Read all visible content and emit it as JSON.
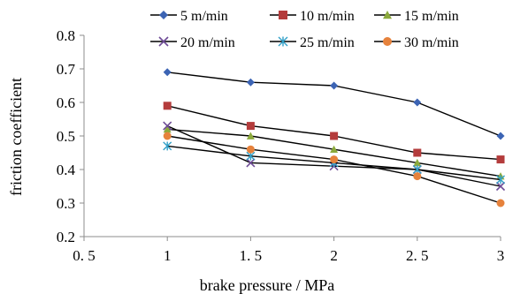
{
  "chart_data": {
    "type": "line",
    "title": "",
    "xlabel": "brake pressure / MPa",
    "ylabel": "friction coefficient",
    "x": [
      1,
      1.5,
      2,
      2.5,
      3
    ],
    "xlim": [
      0.5,
      3
    ],
    "ylim": [
      0.2,
      0.8
    ],
    "x_ticks": [
      0.5,
      1,
      1.5,
      2,
      2.5,
      3
    ],
    "x_tick_labels": [
      "0. 5",
      "1",
      "1. 5",
      "2",
      "2. 5",
      "3"
    ],
    "y_ticks": [
      0.2,
      0.3,
      0.4,
      0.5,
      0.6,
      0.7,
      0.8
    ],
    "y_tick_labels": [
      "0.2",
      "0.3",
      "0.4",
      "0.5",
      "0.6",
      "0.7",
      "0.8"
    ],
    "grid": false,
    "legend_position": "top",
    "series": [
      {
        "name": "5 m/min",
        "marker": "diamond",
        "color": "#3c64b4",
        "values": [
          0.69,
          0.66,
          0.65,
          0.6,
          0.5
        ]
      },
      {
        "name": "10 m/min",
        "marker": "square",
        "color": "#b43c3c",
        "values": [
          0.59,
          0.53,
          0.5,
          0.45,
          0.43
        ]
      },
      {
        "name": "15 m/min",
        "marker": "triangle",
        "color": "#8caa3c",
        "values": [
          0.52,
          0.5,
          0.46,
          0.42,
          0.38
        ]
      },
      {
        "name": "20 m/min",
        "marker": "x",
        "color": "#6e4b96",
        "values": [
          0.53,
          0.42,
          0.41,
          0.4,
          0.35
        ]
      },
      {
        "name": "25 m/min",
        "marker": "asterisk",
        "color": "#32a0c8",
        "values": [
          0.47,
          0.44,
          0.42,
          0.4,
          0.37
        ]
      },
      {
        "name": "30 m/min",
        "marker": "circle",
        "color": "#e6823c",
        "values": [
          0.5,
          0.46,
          0.43,
          0.38,
          0.3
        ]
      }
    ]
  }
}
